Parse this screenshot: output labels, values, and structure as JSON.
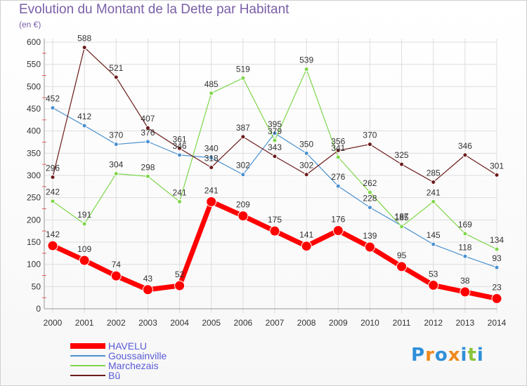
{
  "title": "Evolution du Montant de la Dette par Habitant",
  "unit_label": "(en €)",
  "logo": {
    "text": "Proxiti",
    "letter_colors": [
      "#2f8fd8",
      "#f08a1c",
      "#2f8fd8",
      "#f08a1c",
      "#2f8fd8",
      "#8ac43a",
      "#2f8fd8"
    ]
  },
  "chart_data": {
    "type": "line",
    "title": "Evolution du Montant de la Dette par Habitant",
    "ylabel": "(en €)",
    "xlabel": "",
    "x": [
      "2000",
      "2001",
      "2002",
      "2003",
      "2004",
      "2005",
      "2006",
      "2007",
      "2008",
      "2009",
      "2010",
      "2011",
      "2012",
      "2013",
      "2014"
    ],
    "ylim": [
      0,
      600
    ],
    "yticks": [
      0,
      50,
      100,
      150,
      200,
      250,
      300,
      350,
      400,
      450,
      500,
      550,
      600
    ],
    "grid": true,
    "legend_position": "bottom-left",
    "series": [
      {
        "name": "HAVELU",
        "color": "#ff0000",
        "emphasis": true,
        "values": [
          142,
          109,
          74,
          43,
          52,
          241,
          209,
          175,
          141,
          176,
          139,
          95,
          53,
          38,
          23
        ]
      },
      {
        "name": "Goussainville",
        "color": "#4a90d0",
        "emphasis": false,
        "values": [
          452,
          412,
          370,
          376,
          346,
          340,
          302,
          395,
          350,
          276,
          228,
          187,
          145,
          118,
          93
        ]
      },
      {
        "name": "Marchezais",
        "color": "#7ed64a",
        "emphasis": false,
        "values": [
          242,
          191,
          304,
          298,
          241,
          485,
          519,
          379,
          539,
          341,
          262,
          185,
          241,
          169,
          134
        ]
      },
      {
        "name": "Bû",
        "color": "#6b1a1a",
        "emphasis": false,
        "values": [
          296,
          588,
          521,
          407,
          361,
          318,
          387,
          343,
          302,
          356,
          370,
          325,
          285,
          346,
          301
        ]
      }
    ]
  }
}
